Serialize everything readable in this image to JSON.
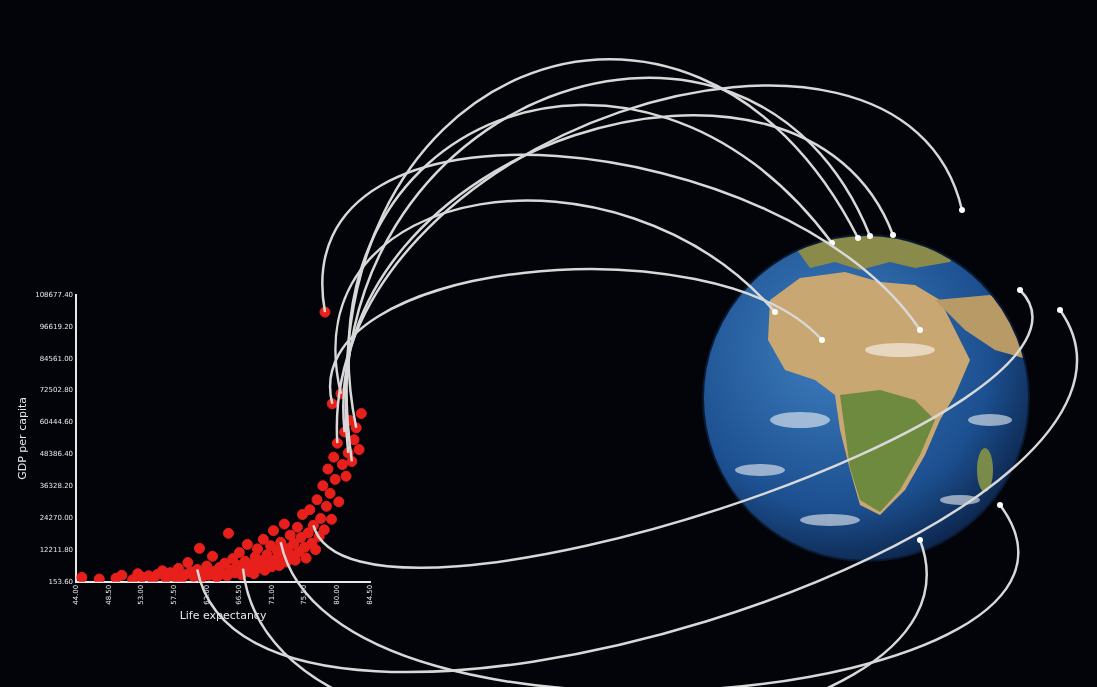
{
  "chart_data": {
    "type": "scatter",
    "x_label": "Life expectancy",
    "y_label": "GDP per capita",
    "color": "#e8201c",
    "marker": "circle",
    "grid": false,
    "xlim": [
      44.0,
      84.5
    ],
    "xticks": [
      {
        "value": 44.0,
        "label": "44.00"
      },
      {
        "value": 48.5,
        "label": "48.50"
      },
      {
        "value": 53.0,
        "label": "53.00"
      },
      {
        "value": 57.5,
        "label": "57.50"
      },
      {
        "value": 62.0,
        "label": "62.00"
      },
      {
        "value": 66.5,
        "label": "66.50"
      },
      {
        "value": 71.0,
        "label": "71.00"
      },
      {
        "value": 75.5,
        "label": "75.50"
      },
      {
        "value": 80.0,
        "label": "80.00"
      },
      {
        "value": 84.5,
        "label": "84.50"
      }
    ],
    "ylim": [
      153.6,
      108677.4
    ],
    "yticks": [
      {
        "value": 153.6,
        "label": "153.60"
      },
      {
        "value": 12211.8,
        "label": "12211.80"
      },
      {
        "value": 24270.0,
        "label": "24270.00"
      },
      {
        "value": 36328.2,
        "label": "36328.20"
      },
      {
        "value": 48386.4,
        "label": "48386.40"
      },
      {
        "value": 60444.6,
        "label": "60444.60"
      },
      {
        "value": 72502.8,
        "label": "72502.80"
      },
      {
        "value": 84561.0,
        "label": "84561.00"
      },
      {
        "value": 96619.2,
        "label": "96619.20"
      },
      {
        "value": 108677.4,
        "label": "108677.40"
      }
    ],
    "x": [
      44.8,
      47.2,
      49.5,
      50.3,
      51.8,
      52.5,
      53.1,
      54.0,
      54.6,
      55.2,
      55.9,
      56.4,
      57.0,
      57.6,
      58.1,
      58.5,
      59.0,
      59.4,
      59.8,
      60.2,
      60.7,
      61.0,
      61.3,
      61.6,
      62.0,
      62.3,
      62.8,
      63.1,
      63.4,
      63.8,
      64.1,
      64.5,
      64.8,
      65.0,
      65.3,
      65.6,
      65.9,
      66.2,
      66.5,
      66.8,
      67.0,
      67.3,
      67.6,
      67.9,
      68.2,
      68.5,
      68.7,
      69.0,
      69.2,
      69.5,
      69.8,
      70.0,
      70.3,
      70.5,
      70.8,
      71.0,
      71.2,
      71.5,
      71.7,
      72.0,
      72.2,
      72.5,
      72.7,
      73.0,
      73.2,
      73.5,
      73.7,
      74.0,
      74.2,
      74.5,
      74.7,
      75.0,
      75.2,
      75.5,
      75.7,
      76.0,
      76.2,
      76.5,
      76.7,
      77.0,
      77.2,
      77.5,
      77.7,
      78.0,
      78.2,
      78.3,
      78.5,
      78.7,
      79.0,
      79.2,
      79.3,
      79.5,
      79.7,
      80.0,
      80.2,
      80.5,
      80.7,
      81.0,
      81.2,
      81.5,
      81.7,
      82.0,
      82.3,
      82.6,
      83.0,
      83.3
    ],
    "values": [
      1800,
      1200,
      1500,
      2600,
      900,
      3200,
      1900,
      2400,
      1100,
      2900,
      4300,
      1600,
      3600,
      2100,
      5200,
      1300,
      2800,
      7400,
      3900,
      2200,
      4800,
      12800,
      1700,
      3300,
      6100,
      2600,
      9800,
      4200,
      1900,
      5600,
      3100,
      7200,
      2400,
      18500,
      4600,
      8900,
      3500,
      6400,
      11200,
      2800,
      5100,
      7900,
      14300,
      4000,
      6800,
      3200,
      9600,
      12600,
      5400,
      8100,
      16200,
      4500,
      10400,
      7000,
      13800,
      5900,
      19500,
      8700,
      11900,
      6300,
      15100,
      9400,
      22000,
      7600,
      12700,
      17800,
      10200,
      14600,
      8300,
      20800,
      11500,
      16900,
      25600,
      13200,
      9100,
      18700,
      27400,
      14800,
      21500,
      12300,
      31200,
      17300,
      24100,
      36500,
      19800,
      102200,
      28700,
      42800,
      33600,
      23800,
      67500,
      47300,
      38900,
      52600,
      30400,
      71300,
      44500,
      56800,
      40100,
      48900,
      61200,
      45700,
      53900,
      58400,
      50200,
      63800
    ]
  }
}
